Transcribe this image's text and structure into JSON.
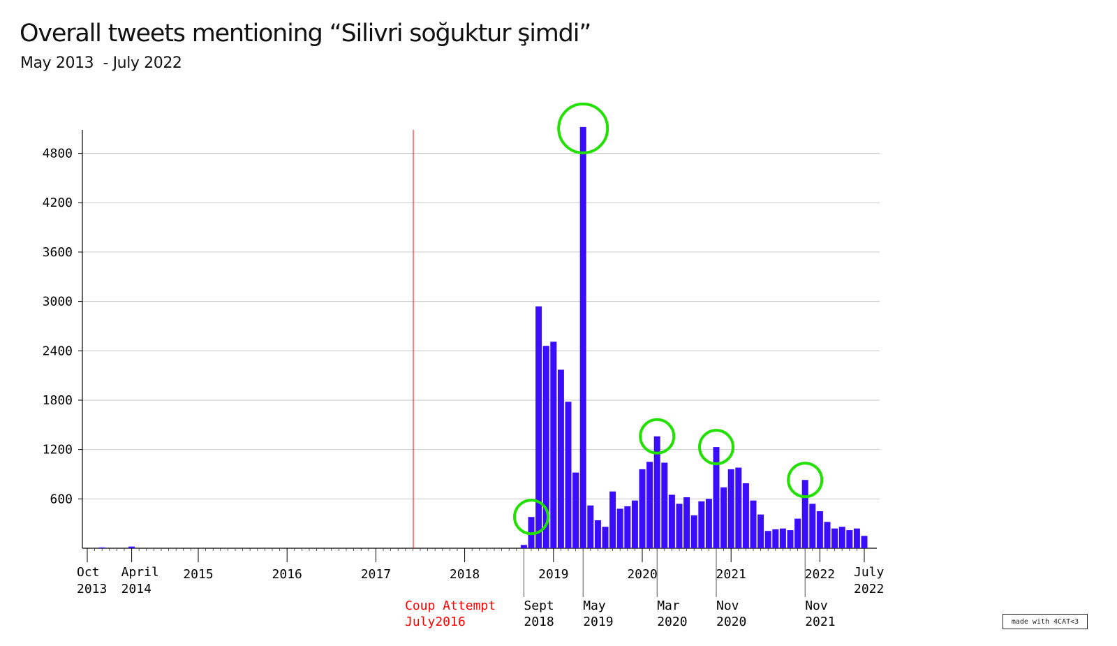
{
  "header": {
    "title": "Overall tweets mentioning “Silivri soğuktur şimdi”",
    "subtitle": "May 2013  - July 2022"
  },
  "credit": "made with 4CAT<3",
  "colors": {
    "bar": "#3a0dff",
    "grid": "#c6c6c6",
    "axis": "#000000",
    "event": "#ff0000",
    "highlight": "#22e000"
  },
  "chart_data": {
    "type": "bar",
    "title": "Overall tweets mentioning “Silivri soğuktur şimdi”",
    "subtitle": "May 2013  - July 2022",
    "xlabel": "",
    "ylabel": "",
    "ylim": [
      0,
      5100
    ],
    "grid": true,
    "y_ticks": [
      600,
      1200,
      1800,
      2400,
      3000,
      3600,
      4200,
      4800
    ],
    "categories": [
      "2013-10",
      "2013-11",
      "2013-12",
      "2014-01",
      "2014-02",
      "2014-03",
      "2014-04",
      "2014-05",
      "2014-06",
      "2014-07",
      "2014-08",
      "2014-09",
      "2014-10",
      "2014-11",
      "2014-12",
      "2015-01",
      "2015-02",
      "2015-03",
      "2015-04",
      "2015-05",
      "2015-06",
      "2015-07",
      "2015-08",
      "2015-09",
      "2015-10",
      "2015-11",
      "2015-12",
      "2016-01",
      "2016-02",
      "2016-03",
      "2016-04",
      "2016-05",
      "2016-06",
      "2016-07",
      "2016-08",
      "2016-09",
      "2016-10",
      "2016-11",
      "2016-12",
      "2017-01",
      "2017-02",
      "2017-03",
      "2017-04",
      "2017-05",
      "2017-06",
      "2017-07",
      "2017-08",
      "2017-09",
      "2017-10",
      "2017-11",
      "2017-12",
      "2018-01",
      "2018-02",
      "2018-03",
      "2018-04",
      "2018-05",
      "2018-06",
      "2018-07",
      "2018-08",
      "2018-09",
      "2018-10",
      "2018-11",
      "2018-12",
      "2019-01",
      "2019-02",
      "2019-03",
      "2019-04",
      "2019-05",
      "2019-06",
      "2019-07",
      "2019-08",
      "2019-09",
      "2019-10",
      "2019-11",
      "2019-12",
      "2020-01",
      "2020-02",
      "2020-03",
      "2020-04",
      "2020-05",
      "2020-06",
      "2020-07",
      "2020-08",
      "2020-09",
      "2020-10",
      "2020-11",
      "2020-12",
      "2021-01",
      "2021-02",
      "2021-03",
      "2021-04",
      "2021-05",
      "2021-06",
      "2021-07",
      "2021-08",
      "2021-09",
      "2021-10",
      "2021-11",
      "2021-12",
      "2022-01",
      "2022-02",
      "2022-03",
      "2022-04",
      "2022-05",
      "2022-06",
      "2022-07"
    ],
    "values": [
      0,
      0,
      10,
      0,
      0,
      0,
      20,
      0,
      0,
      0,
      0,
      0,
      0,
      0,
      0,
      0,
      0,
      0,
      0,
      0,
      0,
      0,
      0,
      0,
      0,
      0,
      0,
      0,
      0,
      0,
      0,
      0,
      0,
      0,
      0,
      0,
      0,
      0,
      0,
      0,
      0,
      0,
      0,
      0,
      0,
      0,
      0,
      0,
      0,
      0,
      0,
      0,
      0,
      0,
      0,
      0,
      0,
      0,
      0,
      40,
      380,
      2940,
      2460,
      2510,
      2170,
      1780,
      920,
      5120,
      520,
      340,
      260,
      690,
      480,
      510,
      580,
      960,
      1050,
      1360,
      1040,
      650,
      540,
      620,
      400,
      570,
      600,
      1230,
      740,
      960,
      980,
      790,
      580,
      410,
      210,
      230,
      240,
      220,
      360,
      830,
      540,
      450,
      320,
      240,
      260,
      220,
      240,
      150
    ],
    "x_tick_labels": [
      {
        "at": "2013-10",
        "lines": [
          "Oct",
          "2013"
        ]
      },
      {
        "at": "2014-04",
        "lines": [
          "April",
          "2014"
        ]
      },
      {
        "at": "2015-01",
        "lines": [
          "2015"
        ]
      },
      {
        "at": "2016-01",
        "lines": [
          "2016"
        ]
      },
      {
        "at": "2017-01",
        "lines": [
          "2017"
        ]
      },
      {
        "at": "2018-01",
        "lines": [
          "2018"
        ]
      },
      {
        "at": "2019-01",
        "lines": [
          "2019"
        ]
      },
      {
        "at": "2020-01",
        "lines": [
          "2020"
        ]
      },
      {
        "at": "2021-01",
        "lines": [
          "2021"
        ]
      },
      {
        "at": "2022-01",
        "lines": [
          "2022"
        ]
      },
      {
        "at": "2022-07",
        "lines": [
          "July",
          "2022"
        ]
      }
    ],
    "annotations": [
      {
        "at": "2017-07",
        "lines": [
          "Coup Attempt",
          "July2016"
        ],
        "color": "#ff0000",
        "type": "event-line"
      },
      {
        "at": "2018-09",
        "lines": [
          "Sept",
          "2018"
        ],
        "type": "marker"
      },
      {
        "at": "2019-05",
        "lines": [
          "May",
          "2019"
        ],
        "type": "marker"
      },
      {
        "at": "2020-03",
        "lines": [
          "Mar",
          "2020"
        ],
        "type": "marker"
      },
      {
        "at": "2020-11",
        "lines": [
          "Nov",
          "2020"
        ],
        "type": "marker"
      },
      {
        "at": "2021-11",
        "lines": [
          "Nov",
          "2021"
        ],
        "type": "marker"
      }
    ],
    "highlighted_peaks": [
      "2018-10",
      "2019-05",
      "2020-03",
      "2020-11",
      "2021-11"
    ]
  }
}
